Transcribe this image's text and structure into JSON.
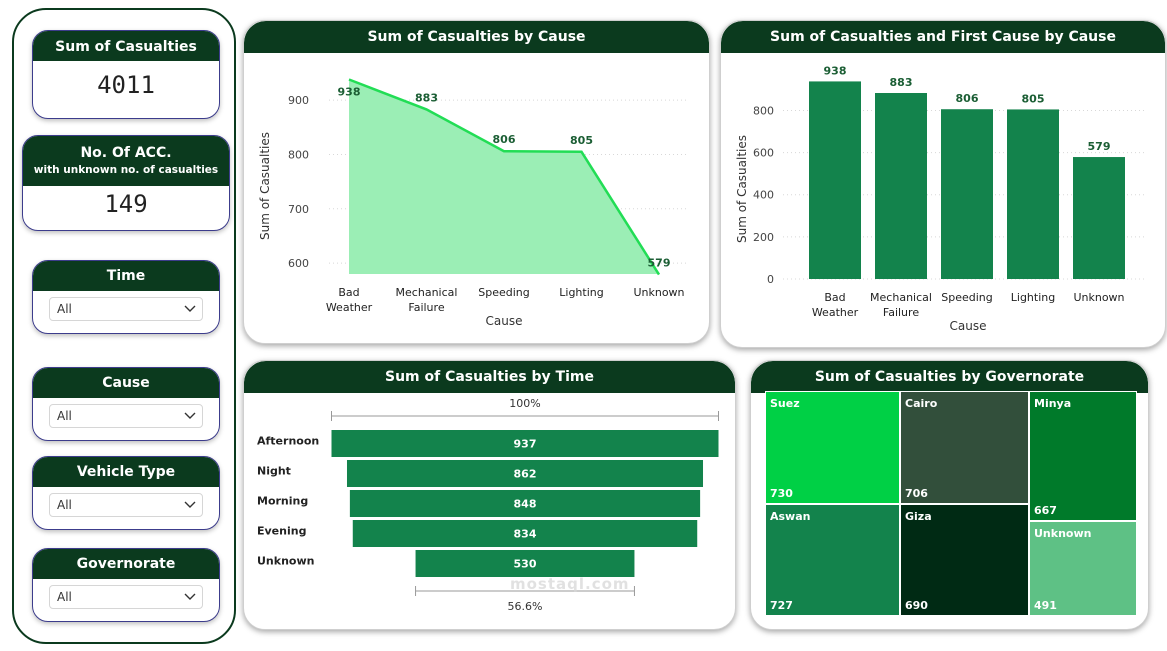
{
  "kpis": {
    "casualties": {
      "title": "Sum of Casualties",
      "value": "4011"
    },
    "unknown_acc": {
      "title": "No. Of ACC.",
      "subtitle": "with unknown no. of casualties",
      "value": "149"
    }
  },
  "slicers": [
    {
      "title": "Time",
      "value": "All"
    },
    {
      "title": "Cause",
      "value": "All"
    },
    {
      "title": "Vehicle Type",
      "value": "All"
    },
    {
      "title": "Governorate",
      "value": "All"
    }
  ],
  "colors": {
    "header": "#0b3a1e",
    "area_fill": "#9beeb5",
    "area_line": "#22dd55",
    "bar": "#13834c"
  },
  "area_chart": {
    "title": "Sum of Casualties by Cause",
    "chart_data": {
      "type": "area",
      "categories": [
        [
          "Bad",
          "Weather"
        ],
        [
          "Mechanical",
          "Failure"
        ],
        [
          "Speeding"
        ],
        [
          "Lighting"
        ],
        [
          "Unknown"
        ]
      ],
      "values": [
        938,
        883,
        806,
        805,
        579
      ],
      "xlabel": "Cause",
      "ylabel": "Sum of Casualties",
      "ylim": [
        580,
        950
      ],
      "yticks": [
        600,
        700,
        800,
        900
      ],
      "grid": true
    }
  },
  "bar_chart": {
    "title": "Sum of Casualties and First Cause by Cause",
    "chart_data": {
      "type": "bar",
      "categories": [
        [
          "Bad",
          "Weather"
        ],
        [
          "Mechanical",
          "Failure"
        ],
        [
          "Speeding"
        ],
        [
          "Lighting"
        ],
        [
          "Unknown"
        ]
      ],
      "values": [
        938,
        883,
        806,
        805,
        579
      ],
      "xlabel": "Cause",
      "ylabel": "Sum of Casualties",
      "ylim": [
        0,
        940
      ],
      "yticks": [
        0,
        200,
        400,
        600,
        800
      ],
      "grid": true
    }
  },
  "funnel_chart": {
    "title": "Sum of Casualties by Time",
    "top_pct": "100%",
    "bottom_pct": "56.6%",
    "chart_data": {
      "type": "bar",
      "categories": [
        "Afternoon",
        "Night",
        "Morning",
        "Evening",
        "Unknown"
      ],
      "values": [
        937,
        862,
        848,
        834,
        530
      ]
    }
  },
  "treemap": {
    "title": "Sum of Casualties by Governorate",
    "items": [
      {
        "name": "Suez",
        "value": "730",
        "color": "#00d045"
      },
      {
        "name": "Cairo",
        "value": "706",
        "color": "#324f3b"
      },
      {
        "name": "Minya",
        "value": "667",
        "color": "#007a2a"
      },
      {
        "name": "Aswan",
        "value": "727",
        "color": "#13834c"
      },
      {
        "name": "Giza",
        "value": "690",
        "color": "#002a14"
      },
      {
        "name": "Unknown",
        "value": "491",
        "color": "#5ec185"
      }
    ]
  },
  "watermark": "mostaql.com"
}
